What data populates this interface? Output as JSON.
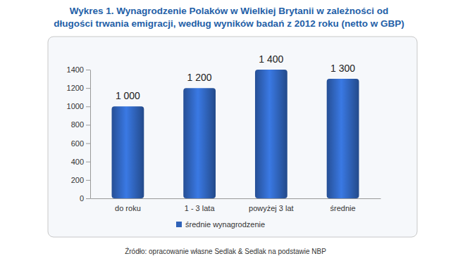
{
  "chart_data": {
    "type": "bar",
    "title": "Wykres 1. Wynagrodzenie Polaków w Wielkiej Brytanii w zależności od długości trwania emigracji, według wyników badań z 2012 roku (netto w GBP)",
    "categories": [
      "do roku",
      "1 - 3 lata",
      "powyżej 3 lat",
      "średnie"
    ],
    "series": [
      {
        "name": "średnie wynagrodzenie",
        "color": "#2f62b8",
        "values": [
          1000,
          1200,
          1400,
          1300
        ],
        "value_labels": [
          "1 000",
          "1 200",
          "1 400",
          "1 300"
        ]
      }
    ],
    "ylim": [
      0,
      1400
    ],
    "yticks": [
      0,
      200,
      400,
      600,
      800,
      1000,
      1200,
      1400
    ],
    "grid": false,
    "data_labels": true,
    "legend": "bottom",
    "source": "Źródło: opracowanie własne Sedlak & Sedlak na podstawie NBP"
  }
}
